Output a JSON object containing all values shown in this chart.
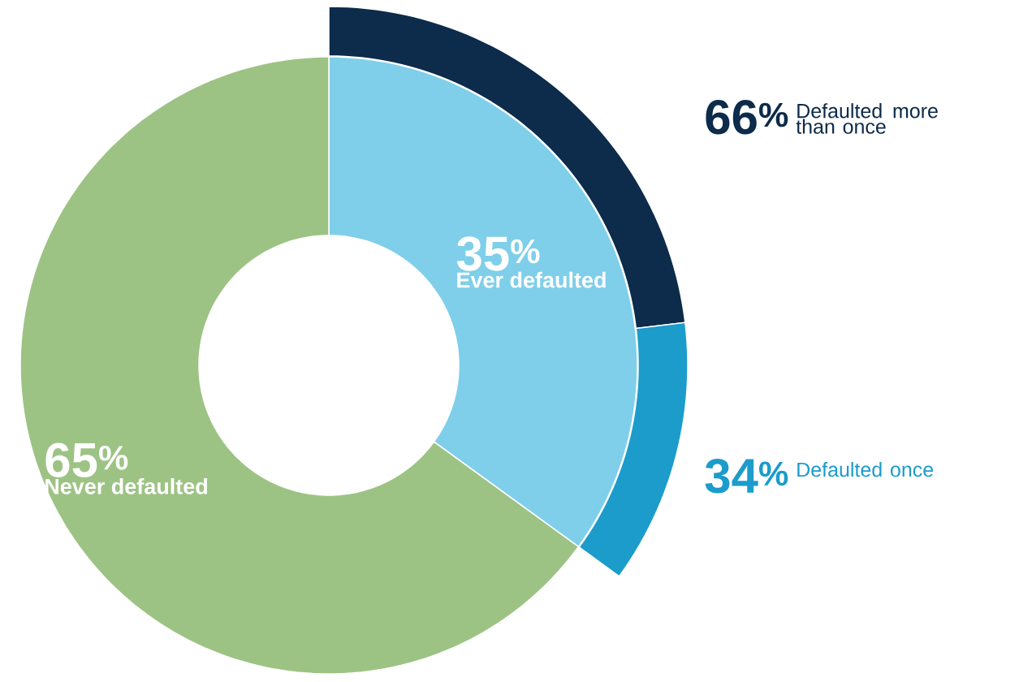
{
  "chart_data": [
    {
      "type": "donut",
      "categories": [
        "Ever defaulted",
        "Never defaulted"
      ],
      "values": [
        35,
        65
      ],
      "colors": [
        "#7fcfea",
        "#9dc384"
      ],
      "value_labels": [
        "35$^{%}$",
        "65$^{%}$"
      ]
    },
    {
      "type": "other",
      "categories": [
        "Defaulted more than once",
        "Defaulted once"
      ],
      "values": [
        66,
        34
      ],
      "colors": [
        "#0d2b4a",
        "#1b9ccb"
      ],
      "value_labels": [
        "66$^{%}$",
        "34$^{%}$"
      ]
    }
  ]
}
